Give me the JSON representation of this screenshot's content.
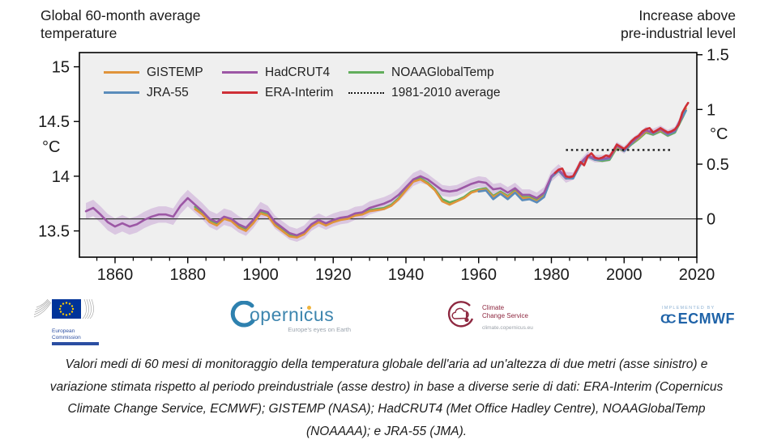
{
  "titles": {
    "left_line1": "Global 60-month average",
    "left_line2": "temperature",
    "right_line1": "Increase above",
    "right_line2": "pre-industrial level"
  },
  "legend": [
    {
      "label": "GISTEMP",
      "color": "#e0943b",
      "dash": "solid"
    },
    {
      "label": "JRA-55",
      "color": "#5a8cbb",
      "dash": "solid"
    },
    {
      "label": "HadCRUT4",
      "color": "#9c57a5",
      "dash": "solid"
    },
    {
      "label": "ERA-Interim",
      "color": "#ce2f36",
      "dash": "solid"
    },
    {
      "label": "NOAAGlobalTemp",
      "color": "#62ae5c",
      "dash": "solid"
    },
    {
      "label": "1981-2010 average",
      "color": "#1a1a1a",
      "dash": "dotted"
    }
  ],
  "axes": {
    "left": {
      "unit": "°C",
      "tick_labels": [
        "15",
        "14.5",
        "14",
        "13.5"
      ],
      "tick_values": [
        15,
        14.5,
        14,
        13.5
      ]
    },
    "right": {
      "unit": "°C",
      "tick_labels": [
        "1.5",
        "1",
        "0.5",
        "0"
      ],
      "tick_values": [
        1.5,
        1,
        0.5,
        0
      ]
    },
    "x": {
      "tick_labels": [
        "1860",
        "1880",
        "1900",
        "1920",
        "1940",
        "1960",
        "1980",
        "2000",
        "2020"
      ],
      "tick_values": [
        1860,
        1880,
        1900,
        1920,
        1940,
        1960,
        1980,
        2000,
        2020
      ],
      "minor_start": 1855,
      "minor_end": 2015,
      "minor_step": 5
    }
  },
  "chart_data": {
    "type": "line",
    "title_left": "Global 60-month average temperature",
    "title_right": "Increase above pre-industrial level",
    "ylabel_left": "°C",
    "ylabel_right": "°C",
    "xlim": [
      1850.2,
      2020
    ],
    "ylim_left_c": [
      13.26,
      15.13
    ],
    "ylim_right_anomaly": [
      -0.35,
      1.52
    ],
    "baseline_c": 13.61,
    "zero_line_c": 13.61,
    "grid": false,
    "plot_bg": "#efefef",
    "band_color": "#c9a6d6",
    "band_series": "HadCRUT4",
    "band_halfwidth_by_year": [
      [
        1900,
        0.075
      ],
      [
        1945,
        0.06
      ],
      [
        1985,
        0.05
      ],
      [
        9999,
        0.034
      ]
    ],
    "average_line": {
      "label": "1981-2010 average",
      "anomaly": 0.63,
      "celsius": 14.24,
      "x_start": 1984,
      "x_end": 2013,
      "color": "#1a1a1a"
    },
    "series": [
      {
        "name": "NOAAGlobalTemp",
        "color": "#62ae5c",
        "years": [
          1882,
          1884,
          1886,
          1888,
          1890,
          1892,
          1894,
          1896,
          1898,
          1900,
          1902,
          1904,
          1906,
          1908,
          1910,
          1912,
          1914,
          1916,
          1918,
          1920,
          1922,
          1924,
          1926,
          1928,
          1930,
          1932,
          1934,
          1936,
          1938,
          1940,
          1942,
          1944,
          1946,
          1948,
          1950,
          1952,
          1954,
          1956,
          1958,
          1960,
          1962,
          1964,
          1966,
          1968,
          1970,
          1972,
          1974,
          1976,
          1978,
          1980,
          1982,
          1984,
          1986,
          1988,
          1990,
          1992,
          1994,
          1996,
          1998,
          2000,
          2002,
          2004,
          2006,
          2008,
          2010,
          2012,
          2014,
          2016,
          2017
        ],
        "values": [
          13.72,
          13.66,
          13.6,
          13.56,
          13.62,
          13.6,
          13.54,
          13.52,
          13.59,
          13.67,
          13.65,
          13.57,
          13.51,
          13.46,
          13.45,
          13.49,
          13.55,
          13.59,
          13.56,
          13.59,
          13.61,
          13.62,
          13.65,
          13.66,
          13.69,
          13.7,
          13.71,
          13.74,
          13.8,
          13.88,
          13.96,
          13.98,
          13.94,
          13.88,
          13.79,
          13.76,
          13.78,
          13.81,
          13.86,
          13.88,
          13.89,
          13.82,
          13.86,
          13.82,
          13.87,
          13.81,
          13.81,
          13.78,
          13.83,
          13.99,
          14.05,
          13.98,
          13.99,
          14.11,
          14.18,
          14.15,
          14.14,
          14.15,
          14.26,
          14.23,
          14.29,
          14.34,
          14.4,
          14.38,
          14.41,
          14.37,
          14.4,
          14.53,
          14.6
        ]
      },
      {
        "name": "GISTEMP",
        "color": "#e0943b",
        "years": [
          1882,
          1884,
          1886,
          1888,
          1890,
          1892,
          1894,
          1896,
          1898,
          1900,
          1902,
          1904,
          1906,
          1908,
          1910,
          1912,
          1914,
          1916,
          1918,
          1920,
          1922,
          1924,
          1926,
          1928,
          1930,
          1932,
          1934,
          1936,
          1938,
          1940,
          1942,
          1944,
          1946,
          1948,
          1950,
          1952,
          1954,
          1956,
          1958,
          1960,
          1962,
          1964,
          1966,
          1968,
          1970,
          1972,
          1974,
          1976,
          1978,
          1980,
          1982,
          1984,
          1986,
          1988,
          1990,
          1992,
          1994,
          1996,
          1998,
          2000,
          2002,
          2004,
          2006,
          2008,
          2010,
          2012,
          2014,
          2016,
          2017
        ],
        "values": [
          13.7,
          13.65,
          13.58,
          13.55,
          13.61,
          13.59,
          13.53,
          13.5,
          13.57,
          13.66,
          13.64,
          13.55,
          13.5,
          13.45,
          13.44,
          13.47,
          13.54,
          13.58,
          13.55,
          13.58,
          13.6,
          13.61,
          13.64,
          13.65,
          13.68,
          13.69,
          13.7,
          13.73,
          13.79,
          13.87,
          13.95,
          13.97,
          13.93,
          13.87,
          13.77,
          13.74,
          13.77,
          13.8,
          13.85,
          13.87,
          13.88,
          13.81,
          13.85,
          13.81,
          13.86,
          13.8,
          13.8,
          13.77,
          13.82,
          13.99,
          14.05,
          13.98,
          13.99,
          14.11,
          14.18,
          14.15,
          14.15,
          14.16,
          14.27,
          14.23,
          14.3,
          14.35,
          14.41,
          14.39,
          14.42,
          14.38,
          14.41,
          14.54,
          14.62
        ]
      },
      {
        "name": "JRA-55",
        "color": "#5a8cbb",
        "years": [
          1960,
          1962,
          1964,
          1966,
          1968,
          1970,
          1972,
          1974,
          1976,
          1978,
          1980,
          1982,
          1984,
          1986,
          1988,
          1990,
          1992,
          1994,
          1996,
          1998,
          2000,
          2002,
          2004,
          2006,
          2008,
          2010,
          2012,
          2014,
          2016,
          2017
        ],
        "values": [
          13.86,
          13.87,
          13.79,
          13.84,
          13.79,
          13.85,
          13.78,
          13.79,
          13.76,
          13.81,
          13.99,
          14.05,
          13.98,
          13.98,
          14.11,
          14.18,
          14.15,
          14.15,
          14.16,
          14.28,
          14.23,
          14.3,
          14.36,
          14.42,
          14.39,
          14.43,
          14.38,
          14.41,
          14.54,
          14.6
        ]
      },
      {
        "name": "HadCRUT4",
        "color": "#9c57a5",
        "years": [
          1852,
          1854,
          1856,
          1858,
          1860,
          1862,
          1864,
          1866,
          1868,
          1870,
          1872,
          1874,
          1876,
          1878,
          1880,
          1882,
          1884,
          1886,
          1888,
          1890,
          1892,
          1894,
          1896,
          1898,
          1900,
          1902,
          1904,
          1906,
          1908,
          1910,
          1912,
          1914,
          1916,
          1918,
          1920,
          1922,
          1924,
          1926,
          1928,
          1930,
          1932,
          1934,
          1936,
          1938,
          1940,
          1942,
          1944,
          1946,
          1948,
          1950,
          1952,
          1954,
          1956,
          1958,
          1960,
          1962,
          1964,
          1966,
          1968,
          1970,
          1972,
          1974,
          1976,
          1978,
          1980,
          1982,
          1984,
          1986,
          1988,
          1990,
          1992,
          1994,
          1996,
          1998,
          2000,
          2002,
          2004,
          2006,
          2008,
          2010,
          2012,
          2014,
          2016
        ],
        "values": [
          13.68,
          13.71,
          13.65,
          13.58,
          13.54,
          13.57,
          13.54,
          13.56,
          13.6,
          13.63,
          13.65,
          13.65,
          13.63,
          13.73,
          13.8,
          13.74,
          13.68,
          13.61,
          13.58,
          13.63,
          13.61,
          13.56,
          13.53,
          13.6,
          13.69,
          13.67,
          13.58,
          13.53,
          13.48,
          13.46,
          13.49,
          13.56,
          13.6,
          13.57,
          13.6,
          13.62,
          13.63,
          13.66,
          13.67,
          13.71,
          13.73,
          13.75,
          13.78,
          13.83,
          13.9,
          13.97,
          14.0,
          13.97,
          13.92,
          13.87,
          13.86,
          13.87,
          13.9,
          13.93,
          13.95,
          13.94,
          13.88,
          13.89,
          13.85,
          13.89,
          13.83,
          13.83,
          13.8,
          13.85,
          14.0,
          14.06,
          13.99,
          14.0,
          14.12,
          14.19,
          14.16,
          14.16,
          14.17,
          14.28,
          14.24,
          14.31,
          14.36,
          14.42,
          14.4,
          14.43,
          14.39,
          14.42,
          14.55
        ]
      },
      {
        "name": "ERA-Interim",
        "color": "#ce2f36",
        "years": [
          1981,
          1982,
          1983,
          1984,
          1985,
          1986,
          1987,
          1988,
          1989,
          1990,
          1991,
          1992,
          1993,
          1994,
          1995,
          1996,
          1997,
          1998,
          1999,
          2000,
          2001,
          2002,
          2003,
          2004,
          2005,
          2006,
          2007,
          2008,
          2009,
          2010,
          2011,
          2012,
          2013,
          2014,
          2015,
          2016,
          2017,
          2017.6
        ],
        "values": [
          14.03,
          14.06,
          14.07,
          14.0,
          13.99,
          14.0,
          14.06,
          14.13,
          14.1,
          14.18,
          14.21,
          14.17,
          14.16,
          14.17,
          14.19,
          14.18,
          14.23,
          14.29,
          14.27,
          14.25,
          14.28,
          14.32,
          14.35,
          14.37,
          14.41,
          14.43,
          14.44,
          14.4,
          14.42,
          14.44,
          14.42,
          14.4,
          14.41,
          14.43,
          14.47,
          14.58,
          14.64,
          14.67
        ]
      }
    ]
  },
  "logos": {
    "eu": {
      "line1": "European",
      "line2": "Commission"
    },
    "copernicus": {
      "wordmark": "opernicus",
      "tagline": "Europe's eyes on Earth"
    },
    "c3s": {
      "line1": "Climate",
      "line2": "Change Service",
      "url": "climate.copernicus.eu"
    },
    "ecmwf": {
      "implemented_by": "IMPLEMENTED BY",
      "name": "ECMWF"
    }
  },
  "caption": {
    "lines": [
      "Valori medi di 60 mesi di monitoraggio della temperatura globale dell'aria ad un'altezza di due metri (asse sinistro) e",
      "variazione stimata rispetto al periodo preindustriale (asse destro) in base a diverse serie di dati: ERA-Interim (Copernicus",
      "Climate Change Service, ECMWF); GISTEMP (NASA); HadCRUT4 (Met Office Hadley Centre), NOAAGlobalTemp",
      "(NOAAAA); e JRA-55 (JMA)."
    ]
  }
}
